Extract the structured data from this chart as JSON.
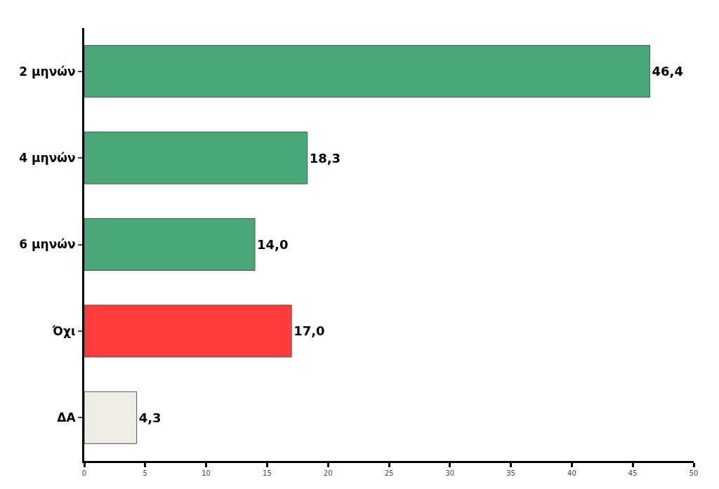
{
  "chart_data": {
    "type": "bar",
    "orientation": "horizontal",
    "categories": [
      "2 μηνών",
      "4 μηνών",
      "6 μηνών",
      "Όχι",
      "ΔΑ"
    ],
    "values": [
      46.4,
      18.3,
      14.0,
      17.0,
      4.3
    ],
    "colors": [
      "#4aa77a",
      "#4aa77a",
      "#4aa77a",
      "#ff3b3b",
      "#efeee6"
    ],
    "value_labels": [
      "46,4",
      "18,3",
      "14,0",
      "17,0",
      "4,3"
    ],
    "xlim": [
      0,
      50
    ],
    "xticks": [
      0,
      5,
      10,
      15,
      20,
      25,
      30,
      35,
      40,
      45,
      50
    ],
    "grid": false
  }
}
